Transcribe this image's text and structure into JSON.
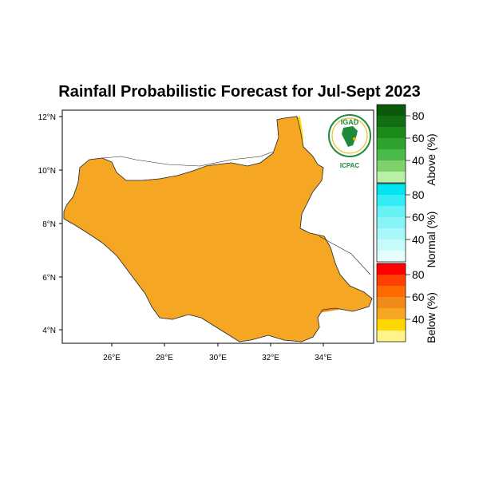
{
  "title": "Rainfall Probabilistic Forecast for Jul-Sept 2023",
  "map": {
    "lat_ticks": [
      "12°N",
      "10°N",
      "8°N",
      "6°N",
      "4°N"
    ],
    "lon_ticks": [
      "26°E",
      "28°E",
      "30°E",
      "32°E",
      "34°E"
    ],
    "region_colors": {
      "below_40": "#f5a623",
      "below_50": "#f08b1a",
      "below_35": "#ffd700",
      "normal_35": "#cdfafa",
      "above_35": "#7fd26a",
      "above_45": "#2ea32e",
      "no_data": "#ffffff"
    }
  },
  "logo": {
    "top_text": "IGAD",
    "bottom_text": "ICPAC",
    "primary_color": "#1e8a3a",
    "accent_color": "#f0b400"
  },
  "colorbar": {
    "above": {
      "title": "Above (%)",
      "labels": [
        "80",
        "60",
        "40"
      ],
      "colors": [
        "#0b5a0b",
        "#136e13",
        "#1b8a1b",
        "#2ea32e",
        "#4cb94c",
        "#7fd26a",
        "#b8f0a8"
      ]
    },
    "normal": {
      "title": "Normal (%)",
      "labels": [
        "80",
        "60",
        "40"
      ],
      "colors": [
        "#00e5f0",
        "#33ecf3",
        "#66f1f5",
        "#88f4f7",
        "#a8f7f9",
        "#c6fafb",
        "#e6fdfd"
      ]
    },
    "below": {
      "title": "Below (%)",
      "labels": [
        "80",
        "60",
        "40"
      ],
      "colors": [
        "#ff0000",
        "#ff4000",
        "#ff6a00",
        "#f08b1a",
        "#f5a623",
        "#ffd700",
        "#fff38a"
      ]
    }
  }
}
